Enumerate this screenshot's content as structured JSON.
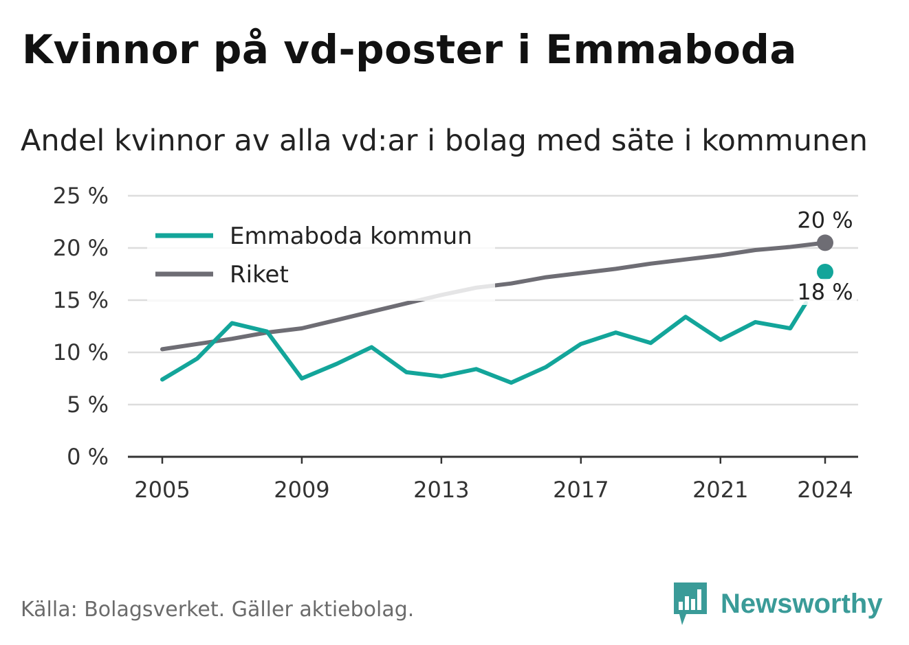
{
  "title": "Kvinnor på vd-poster i Emmaboda",
  "subtitle": "Andel kvinnor av alla vd:ar i bolag med säte i kommunen",
  "source": "Källa: Bolagsverket. Gäller aktiebolag.",
  "brand": {
    "name": "Newsworthy",
    "icon": "newsworthy-bar-chart-logo-icon",
    "color": "#3a9b98"
  },
  "colors": {
    "emmaboda": "#13a59a",
    "riket": "#6e6d74",
    "grid": "#dddddd",
    "axis": "#333333"
  },
  "chart_data": {
    "type": "line",
    "title": "Kvinnor på vd-poster i Emmaboda",
    "subtitle": "Andel kvinnor av alla vd:ar i bolag med säte i kommunen",
    "xlabel": "",
    "ylabel": "",
    "x": [
      2005,
      2006,
      2007,
      2008,
      2009,
      2010,
      2011,
      2012,
      2013,
      2014,
      2015,
      2016,
      2017,
      2018,
      2019,
      2020,
      2021,
      2022,
      2023,
      2024
    ],
    "x_ticks": [
      2005,
      2009,
      2013,
      2017,
      2021,
      2024
    ],
    "y_ticks": [
      0,
      5,
      10,
      15,
      20,
      25
    ],
    "y_tick_labels": [
      "0 %",
      "5 %",
      "10 %",
      "15 %",
      "20 %",
      "25 %"
    ],
    "ylim": [
      0,
      25
    ],
    "grid": true,
    "legend_position": "top-left",
    "series": [
      {
        "name": "Emmaboda kommun",
        "color": "#13a59a",
        "values": [
          7.4,
          9.4,
          12.8,
          12.0,
          7.5,
          8.9,
          10.5,
          8.1,
          7.7,
          8.4,
          7.1,
          8.6,
          10.8,
          11.9,
          10.9,
          13.4,
          11.2,
          12.9,
          12.3,
          17.7
        ],
        "end_label": "18 %"
      },
      {
        "name": "Riket",
        "color": "#6e6d74",
        "values": [
          10.3,
          10.8,
          11.3,
          11.9,
          12.3,
          13.1,
          13.9,
          14.7,
          15.5,
          16.2,
          16.6,
          17.2,
          17.6,
          18.0,
          18.5,
          18.9,
          19.3,
          19.8,
          20.1,
          20.5
        ],
        "end_label": "20 %"
      }
    ]
  }
}
